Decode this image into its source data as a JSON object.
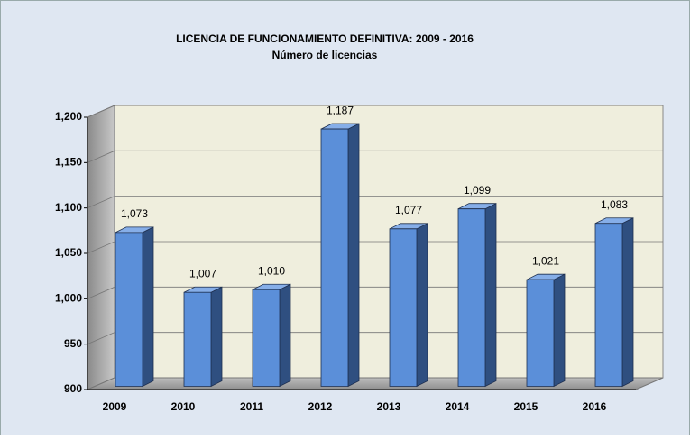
{
  "chart_data": {
    "type": "bar3d",
    "title": "LICENCIA  DE FUNCIONAMIENTO  DEFINITIVA:  2009 - 2016",
    "subtitle": "Número de licencias",
    "categories": [
      "2009",
      "2010",
      "2011",
      "2012",
      "2013",
      "2014",
      "2015",
      "2016"
    ],
    "values": [
      1073,
      1007,
      1010,
      1187,
      1077,
      1099,
      1021,
      1083
    ],
    "value_labels": [
      "1,073",
      "1,007",
      "1,010",
      "1,187",
      "1,077",
      "1,099",
      "1,021",
      "1,083"
    ],
    "color": "#5b8fd9",
    "ylim": [
      900,
      1200
    ],
    "yticks": [
      900,
      950,
      {
        "value": 1000,
        "label": "1,000"
      },
      {
        "value": 1050,
        "label": "1,050"
      },
      {
        "value": 1100,
        "label": "1,100"
      },
      {
        "value": 1150,
        "label": "1,150"
      },
      {
        "value": 1200,
        "label": "1,200"
      }
    ],
    "grid": true
  }
}
